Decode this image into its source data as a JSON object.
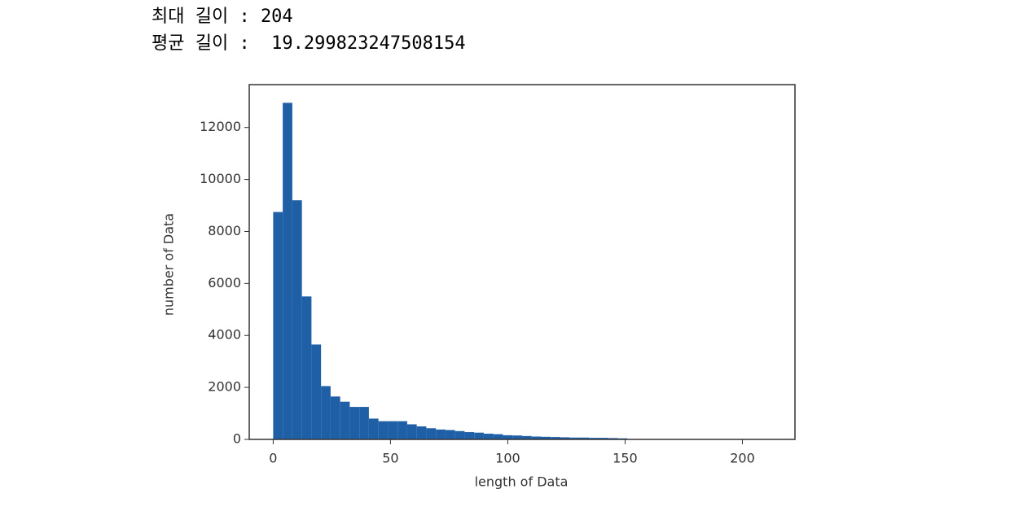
{
  "console": {
    "lines": [
      "최대 길이 : 204",
      "평균 길이 :  19.299823247508154"
    ]
  },
  "chart_data": {
    "type": "histogram",
    "xlabel": "length of Data",
    "ylabel": "number of Data",
    "bins": [
      0,
      4.08,
      8.16,
      12.24,
      16.32,
      20.4,
      24.48,
      28.56,
      32.64,
      36.72,
      40.8,
      44.88,
      48.96,
      53.04,
      57.12,
      61.2,
      65.28,
      69.36,
      73.44,
      77.52,
      81.6,
      85.68,
      89.76,
      93.84,
      97.92,
      102,
      106.08,
      110.16,
      114.24,
      118.32,
      122.4,
      126.48,
      130.56,
      134.64,
      138.72,
      142.8,
      146.88,
      150.96,
      155.04,
      159.12,
      163.2,
      167.28,
      171.36,
      175.44,
      179.52,
      183.6,
      187.68,
      191.76,
      195.84,
      199.92,
      204
    ],
    "values": [
      8750,
      12950,
      9200,
      5500,
      3650,
      2050,
      1650,
      1450,
      1250,
      1250,
      800,
      700,
      700,
      700,
      580,
      500,
      430,
      380,
      360,
      320,
      280,
      260,
      220,
      200,
      160,
      150,
      130,
      110,
      100,
      90,
      80,
      70,
      70,
      60,
      60,
      50,
      40,
      10,
      5,
      3,
      2,
      1,
      1,
      0,
      0,
      0,
      0,
      0,
      0,
      1
    ],
    "color": "#1f5fa6",
    "xlim": [
      -10.2,
      222.4
    ],
    "ylim": [
      0,
      13650
    ],
    "xticks": [
      0,
      50,
      100,
      150,
      200
    ],
    "yticks": [
      0,
      2000,
      4000,
      6000,
      8000,
      10000,
      12000
    ]
  }
}
